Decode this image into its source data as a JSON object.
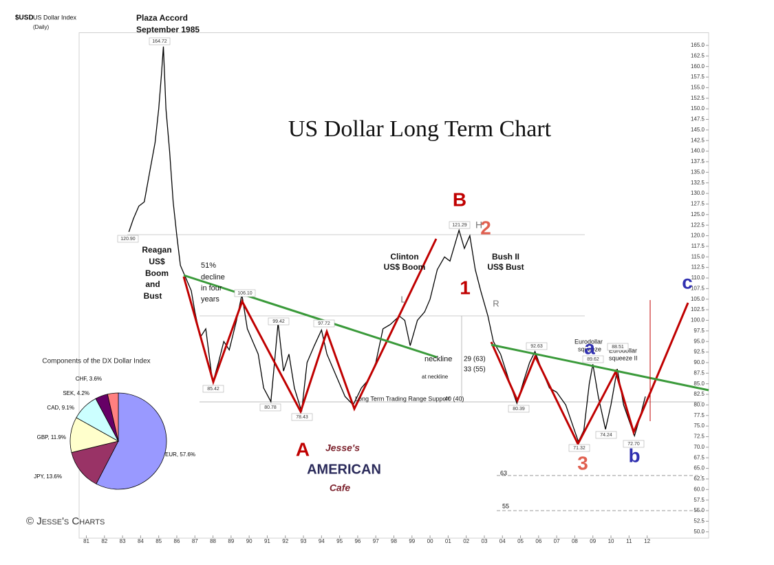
{
  "chart_data": [
    {
      "type": "line",
      "title": "US Dollar Long Term Chart",
      "x": [
        1983.35,
        1983.6,
        1983.9,
        1984.2,
        1984.5,
        1984.8,
        1985.0,
        1985.15,
        1985.26,
        1985.4,
        1985.6,
        1985.8,
        1986.0,
        1986.2,
        1986.5,
        1986.8,
        1987.0,
        1987.3,
        1987.6,
        1987.9,
        1988.0,
        1988.3,
        1988.6,
        1988.9,
        1989.3,
        1989.6,
        1989.9,
        1990.2,
        1990.5,
        1990.8,
        1991.2,
        1991.4,
        1991.6,
        1991.9,
        1992.2,
        1992.5,
        1992.9,
        1993.2,
        1993.6,
        1994.0,
        1994.3,
        1994.7,
        1995.3,
        1995.75,
        1996.2,
        1996.6,
        1997.0,
        1997.4,
        1997.8,
        1998.3,
        1998.6,
        1998.9,
        1999.3,
        1999.7,
        2000.0,
        2000.4,
        2000.8,
        2001.1,
        2001.6,
        2001.9,
        2002.2,
        2002.5,
        2002.8,
        2003.2,
        2003.5,
        2003.9,
        2004.2,
        2004.5,
        2004.8,
        2005.2,
        2005.5,
        2005.8,
        2006.2,
        2006.6,
        2007.0,
        2007.5,
        2007.9,
        2008.2,
        2008.5,
        2008.8,
        2009.0,
        2009.3,
        2009.7,
        2010.0,
        2010.35,
        2010.7,
        2011.3,
        2011.6,
        2011.9
      ],
      "series": [
        {
          "name": "$USD",
          "color": "#000000",
          "values": [
            120.9,
            124,
            127,
            128,
            135,
            142,
            150,
            158,
            164.72,
            150,
            140,
            128,
            120,
            113,
            110,
            107,
            102,
            96,
            98,
            88,
            85.42,
            90,
            95,
            93,
            100,
            106.1,
            98,
            95,
            92,
            84,
            80.78,
            90,
            99.42,
            88,
            92,
            84,
            78.43,
            90,
            94,
            97.72,
            92,
            88,
            82,
            80,
            84,
            86,
            90,
            98,
            99,
            101,
            100,
            94,
            100,
            102,
            105,
            112,
            115,
            114,
            121.29,
            117,
            120,
            112,
            107,
            101,
            95,
            92,
            88,
            84,
            80.39,
            86,
            90,
            92.63,
            88,
            84,
            83,
            80,
            75,
            71.32,
            74,
            85,
            89.62,
            82,
            74.24,
            80,
            88.51,
            80,
            72.7,
            77,
            82
          ]
        }
      ],
      "xlim": [
        1980.6,
        2015.4
      ],
      "xticks": [
        {
          "value": 1981,
          "label": "81"
        },
        {
          "value": 1982,
          "label": "82"
        },
        {
          "value": 1983,
          "label": "83"
        },
        {
          "value": 1984,
          "label": "84"
        },
        {
          "value": 1985,
          "label": "85"
        },
        {
          "value": 1986,
          "label": "86"
        },
        {
          "value": 1987,
          "label": "87"
        },
        {
          "value": 1988,
          "label": "88"
        },
        {
          "value": 1989,
          "label": "89"
        },
        {
          "value": 1990,
          "label": "90"
        },
        {
          "value": 1991,
          "label": "91"
        },
        {
          "value": 1992,
          "label": "92"
        },
        {
          "value": 1993,
          "label": "93"
        },
        {
          "value": 1994,
          "label": "94"
        },
        {
          "value": 1995,
          "label": "95"
        },
        {
          "value": 1996,
          "label": "96"
        },
        {
          "value": 1997,
          "label": "97"
        },
        {
          "value": 1998,
          "label": "98"
        },
        {
          "value": 1999,
          "label": "99"
        },
        {
          "value": 2000,
          "label": "00"
        },
        {
          "value": 2001,
          "label": "01"
        },
        {
          "value": 2002,
          "label": "02"
        },
        {
          "value": 2003,
          "label": "03"
        },
        {
          "value": 2004,
          "label": "04"
        },
        {
          "value": 2005,
          "label": "05"
        },
        {
          "value": 2006,
          "label": "06"
        },
        {
          "value": 2007,
          "label": "07"
        },
        {
          "value": 2008,
          "label": "08"
        },
        {
          "value": 2009,
          "label": "09"
        },
        {
          "value": 2010,
          "label": "10"
        },
        {
          "value": 2011,
          "label": "11"
        },
        {
          "value": 2012,
          "label": "12"
        }
      ],
      "ylim": [
        48.5,
        168
      ],
      "yticks": [
        {
          "value": 50,
          "label": "50.0"
        },
        52.5,
        {
          "value": 55,
          "label": "55.0"
        },
        57.5,
        {
          "value": 60,
          "label": "60.0"
        },
        62.5,
        {
          "value": 65,
          "label": "65.0"
        },
        67.5,
        {
          "value": 70,
          "label": "70.0"
        },
        72.5,
        {
          "value": 75,
          "label": "75.0"
        },
        77.5,
        {
          "value": 80,
          "label": "80.0"
        },
        82.5,
        {
          "value": 85,
          "label": "85.0"
        },
        87.5,
        {
          "value": 90,
          "label": "90.0"
        },
        92.5,
        {
          "value": 95,
          "label": "95.0"
        },
        97.5,
        {
          "value": 100,
          "label": "100.0"
        },
        102.5,
        {
          "value": 105,
          "label": "105.0"
        },
        107.5,
        {
          "value": 110,
          "label": "110.0"
        },
        112.5,
        {
          "value": 115,
          "label": "115.0"
        },
        117.5,
        {
          "value": 120,
          "label": "120.0"
        },
        122.5,
        {
          "value": 125,
          "label": "125.0"
        },
        127.5,
        {
          "value": 130,
          "label": "130.0"
        },
        132.5,
        {
          "value": 135,
          "label": "135.0"
        },
        137.5,
        {
          "value": 140,
          "label": "140.0"
        },
        142.5,
        {
          "value": 145,
          "label": "145.0"
        },
        147.5,
        {
          "value": 150,
          "label": "150.0"
        },
        152.5,
        {
          "value": 155,
          "label": "155.0"
        },
        157.5,
        {
          "value": 160,
          "label": "160.0"
        },
        162.5,
        {
          "value": 165,
          "label": "165.0"
        }
      ],
      "annotations": [
        "US Dollar Index",
        "(Daily)",
        "Plaza Accord",
        "September 1985",
        "Reagan",
        "US$",
        "Boom",
        "and",
        "Bust",
        "51%",
        "decline",
        "in four",
        "years",
        "Clinton",
        "US$ Boom",
        "Bush II",
        "US$ Bust",
        "H",
        "L",
        "R",
        "neckline",
        "29 (63)",
        "at neckline",
        "33 (55)",
        "Long Term Trading Range Support",
        "40 (40)",
        "Eurodollar",
        "squeeze",
        "Eurodollar",
        "squeeze II",
        "63",
        "55"
      ],
      "price_labels": [
        "164.72",
        "120.90",
        "85.42",
        "106.10",
        "99.42",
        "80.78",
        "78.43",
        "97.72",
        "121.29",
        "80.39",
        "92.63",
        "71.32",
        "89.62",
        "74.24",
        "88.51",
        "72.70"
      ],
      "wave_labels": [
        {
          "text": "A",
          "color": "#c00000"
        },
        {
          "text": "B",
          "color": "#c00000"
        },
        {
          "text": "1",
          "color": "#c00000"
        },
        {
          "text": "2",
          "color": "#e06050"
        },
        {
          "text": "3",
          "color": "#e06050"
        },
        {
          "text": "a",
          "color": "#3030b0"
        },
        {
          "text": "b",
          "color": "#3030b0"
        },
        {
          "text": "c",
          "color": "#3030b0"
        }
      ],
      "logo": [
        "Jesse's",
        "AMERICAN",
        "Cafe"
      ],
      "credit": "© Jesse's Charts"
    },
    {
      "type": "pie",
      "title": "Components of the DX Dollar Index",
      "values": [
        57.6,
        13.6,
        11.9,
        9.1,
        4.2,
        3.6
      ],
      "value_labels": [
        "EUR, 57.6%",
        "JPY, 13.6%",
        "GBP, 11.9%",
        "CAD, 9.1%",
        "SEK, 4.2%",
        "CHF, 3.6%"
      ],
      "colors": [
        "#9999ff",
        "#993366",
        "#ffffcc",
        "#ccffff",
        "#660066",
        "#ff8080"
      ]
    }
  ]
}
